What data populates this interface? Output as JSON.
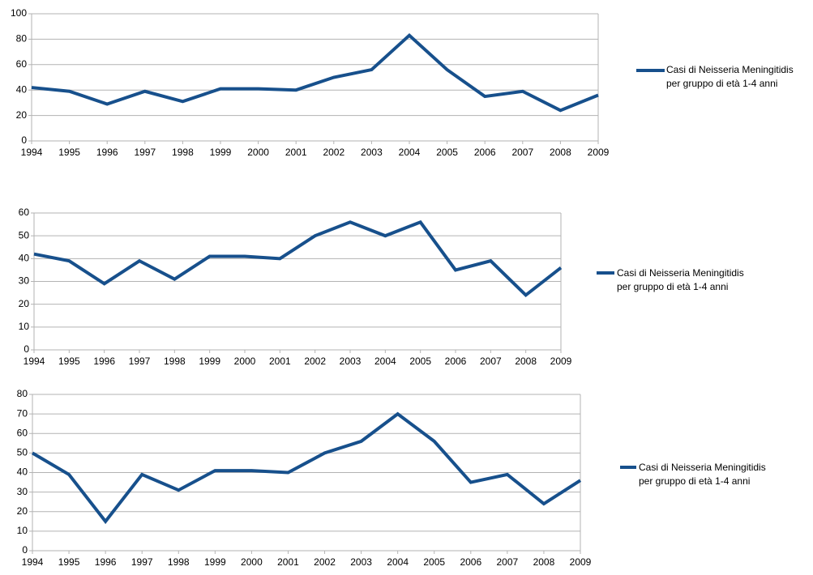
{
  "chart_data": [
    {
      "type": "line",
      "categories": [
        "1994",
        "1995",
        "1996",
        "1997",
        "1998",
        "1999",
        "2000",
        "2001",
        "2002",
        "2003",
        "2004",
        "2005",
        "2006",
        "2007",
        "2008",
        "2009"
      ],
      "series": [
        {
          "name": "Casi di Neisseria Meningitidis per gruppo di età 1-4 anni",
          "color": "#17508c",
          "values": [
            42,
            39,
            29,
            39,
            31,
            41,
            41,
            40,
            50,
            56,
            83,
            56,
            35,
            39,
            24,
            36
          ]
        }
      ],
      "ylim": [
        0,
        100
      ],
      "yticks": [
        0,
        20,
        40,
        60,
        80,
        100
      ],
      "grid": true,
      "legend": "right"
    },
    {
      "type": "line",
      "categories": [
        "1994",
        "1995",
        "1996",
        "1997",
        "1998",
        "1999",
        "2000",
        "2001",
        "2002",
        "2003",
        "2004",
        "2005",
        "2006",
        "2007",
        "2008",
        "2009"
      ],
      "series": [
        {
          "name": "Casi di Neisseria Meningitidis per gruppo di età 1-4 anni",
          "color": "#17508c",
          "values": [
            42,
            39,
            29,
            39,
            31,
            41,
            41,
            40,
            50,
            56,
            50,
            56,
            35,
            39,
            24,
            36
          ]
        }
      ],
      "ylim": [
        0,
        60
      ],
      "yticks": [
        0,
        10,
        20,
        30,
        40,
        50,
        60
      ],
      "grid": true,
      "legend": "right"
    },
    {
      "type": "line",
      "categories": [
        "1994",
        "1995",
        "1996",
        "1997",
        "1998",
        "1999",
        "2000",
        "2001",
        "2002",
        "2003",
        "2004",
        "2005",
        "2006",
        "2007",
        "2008",
        "2009"
      ],
      "series": [
        {
          "name": "Casi di Neisseria Meningitidis per gruppo di età 1-4 anni",
          "color": "#17508c",
          "values": [
            50,
            39,
            15,
            39,
            31,
            41,
            41,
            40,
            50,
            56,
            70,
            56,
            35,
            39,
            24,
            36
          ]
        }
      ],
      "ylim": [
        0,
        80
      ],
      "yticks": [
        0,
        10,
        20,
        30,
        40,
        50,
        60,
        70,
        80
      ],
      "grid": true,
      "legend": "right"
    }
  ]
}
